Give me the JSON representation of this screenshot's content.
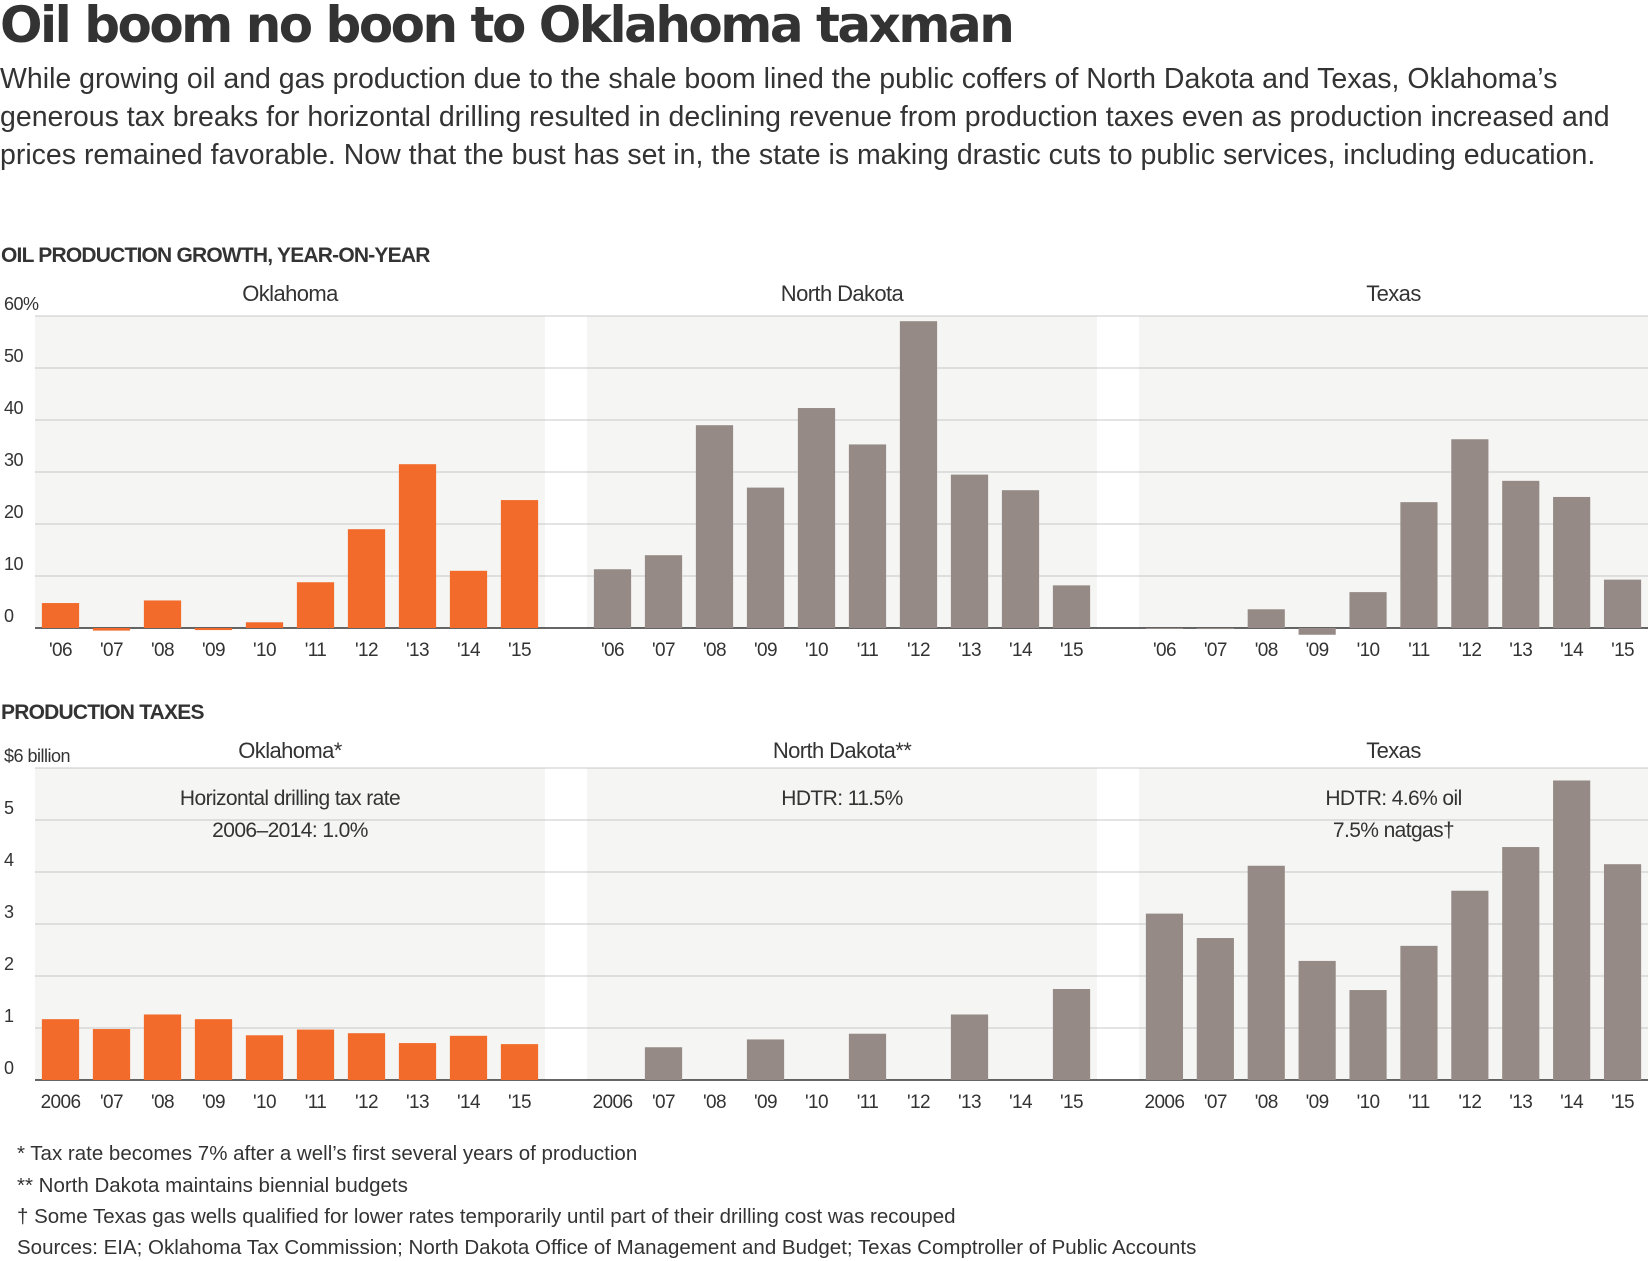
{
  "title": "Oil boom no boon to Oklahoma taxman",
  "subtitle": "While growing oil and gas production due to the shale boom lined the public coffers of North Dakota and Texas, Oklahoma’s generous tax breaks for horizontal drilling resulted in declining revenue from production taxes even as production increased and prices remained favorable. Now that the bust has set in, the state is making drastic cuts to public services, including education.",
  "colors": {
    "oklahoma": "#f26b2b",
    "other": "#958a85",
    "panel": "#f5f5f4",
    "grid": "#c8c8c8",
    "text": "#333333"
  },
  "chart_data": [
    {
      "type": "bar",
      "section_label": "OIL PRODUCTION GROWTH, YEAR-ON-YEAR",
      "ylim": [
        0,
        60
      ],
      "y_ticks": [
        "0",
        "10",
        "20",
        "30",
        "40",
        "50",
        "60%"
      ],
      "grid": true,
      "panels": [
        {
          "label": "Oklahoma",
          "categories": [
            "'06",
            "'07",
            "'08",
            "'09",
            "'10",
            "'11",
            "'12",
            "'13",
            "'14",
            "'15"
          ],
          "values": [
            4.8,
            -0.5,
            5.3,
            -0.4,
            1.1,
            8.8,
            19,
            31.5,
            11,
            24.6
          ]
        },
        {
          "label": "North Dakota",
          "categories": [
            "'06",
            "'07",
            "'08",
            "'09",
            "'10",
            "'11",
            "'12",
            "'13",
            "'14",
            "'15"
          ],
          "values": [
            11.3,
            14,
            39,
            27,
            42.3,
            35.3,
            59,
            29.5,
            26.5,
            8.2
          ]
        },
        {
          "label": "Texas",
          "categories": [
            "'06",
            "'07",
            "'08",
            "'09",
            "'10",
            "'11",
            "'12",
            "'13",
            "'14",
            "'15"
          ],
          "values": [
            0,
            -0.2,
            3.6,
            -1.3,
            6.9,
            24.2,
            36.3,
            28.3,
            25.2,
            9.3
          ]
        }
      ]
    },
    {
      "type": "bar",
      "section_label": "PRODUCTION TAXES",
      "ylim": [
        0,
        6
      ],
      "y_ticks": [
        "0",
        "1",
        "2",
        "3",
        "4",
        "5",
        "$6 billion"
      ],
      "grid": true,
      "panels": [
        {
          "label": "Oklahoma*",
          "note": [
            "Horizontal drilling tax rate",
            "2006–2014: 1.0%"
          ],
          "categories": [
            "2006",
            "'07",
            "'08",
            "'09",
            "'10",
            "'11",
            "'12",
            "'13",
            "'14",
            "'15"
          ],
          "values": [
            1.17,
            0.98,
            1.26,
            1.17,
            0.86,
            0.97,
            0.9,
            0.71,
            0.85,
            0.69
          ]
        },
        {
          "label": "North Dakota**",
          "note": [
            "HDTR: 11.5%"
          ],
          "categories": [
            "2006",
            "'07",
            "'08",
            "'09",
            "'10",
            "'11",
            "'12",
            "'13",
            "'14",
            "'15"
          ],
          "values": [
            null,
            0.63,
            null,
            0.78,
            null,
            0.89,
            null,
            1.26,
            null,
            1.75
          ]
        },
        {
          "label": "Texas",
          "note": [
            "HDTR: 4.6% oil",
            "7.5% natgas†"
          ],
          "categories": [
            "2006",
            "'07",
            "'08",
            "'09",
            "'10",
            "'11",
            "'12",
            "'13",
            "'14",
            "'15"
          ],
          "values": [
            3.2,
            2.73,
            4.12,
            2.29,
            1.73,
            2.58,
            3.64,
            4.48,
            5.76,
            4.15
          ]
        }
      ]
    }
  ],
  "footnotes": [
    "* Tax rate becomes 7% after a well’s first several years of production",
    "** North Dakota maintains biennial budgets",
    "† Some Texas gas wells qualified for lower rates temporarily until part of their drilling cost was recouped",
    "Sources:  EIA; Oklahoma Tax Commission; North Dakota Office of Management and Budget; Texas Comptroller of Public Accounts"
  ]
}
